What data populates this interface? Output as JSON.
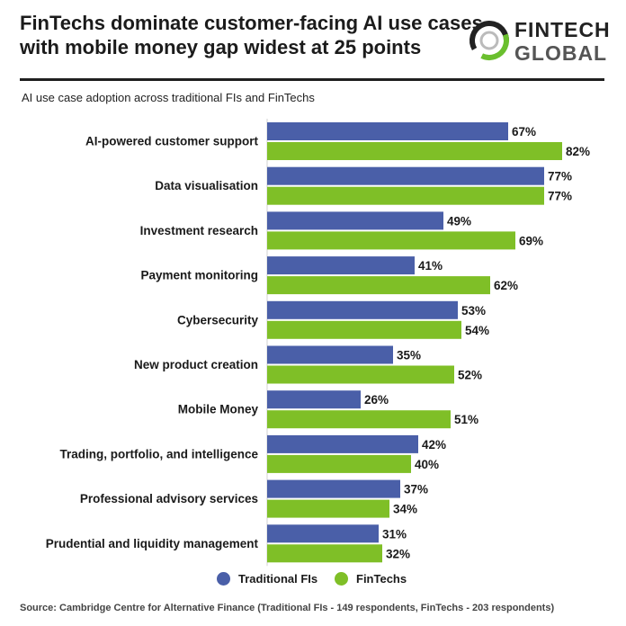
{
  "header": {
    "title_line1": "FinTechs dominate customer-facing AI use cases",
    "title_line2": "with mobile money gap widest at 25 points",
    "logo_top": "FINTECH",
    "logo_bottom": "GLOBAL"
  },
  "subtitle": "AI use case adoption across traditional FIs and FinTechs",
  "source": "Source: Cambridge Centre for Alternative Finance (Traditional FIs - 149 respondents, FinTechs - 203 respondents)",
  "colors": {
    "traditional": "#4a5fa8",
    "fintech": "#7fbf27",
    "logo_ring": "#6abf2e"
  },
  "chart_data": {
    "type": "bar",
    "orientation": "horizontal",
    "value_suffix": "%",
    "xlim": [
      0,
      100
    ],
    "grid": false,
    "legend_position": "bottom",
    "categories": [
      "AI-powered customer support",
      "Data visualisation",
      "Investment research",
      "Payment monitoring",
      "Cybersecurity",
      "New product creation",
      "Mobile Money",
      "Trading, portfolio, and intelligence",
      "Professional advisory services",
      "Prudential and liquidity management"
    ],
    "series": [
      {
        "name": "Traditional FIs",
        "values": [
          67,
          77,
          49,
          41,
          53,
          35,
          26,
          42,
          37,
          31
        ]
      },
      {
        "name": "FinTechs",
        "values": [
          82,
          77,
          69,
          62,
          54,
          52,
          51,
          40,
          34,
          32
        ]
      }
    ]
  }
}
